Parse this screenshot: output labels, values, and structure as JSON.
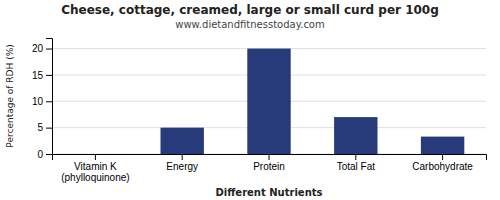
{
  "chart_data": {
    "type": "bar",
    "title": "Cheese, cottage, creamed, large or small curd per 100g",
    "subtitle": "www.dietandfitnesstoday.com",
    "x_label": "Different Nutrients",
    "y_label": "Percentage of RDH (%)",
    "categories": [
      "Vitamin K (phylloquinone)",
      "Energy",
      "Protein",
      "Total Fat",
      "Carbohydrate"
    ],
    "values": [
      0,
      5,
      20,
      7,
      3.3
    ],
    "color": "#273a7a",
    "ylim": [
      0,
      22
    ],
    "yticks": [
      0,
      5,
      10,
      15,
      20
    ],
    "grid": true
  }
}
